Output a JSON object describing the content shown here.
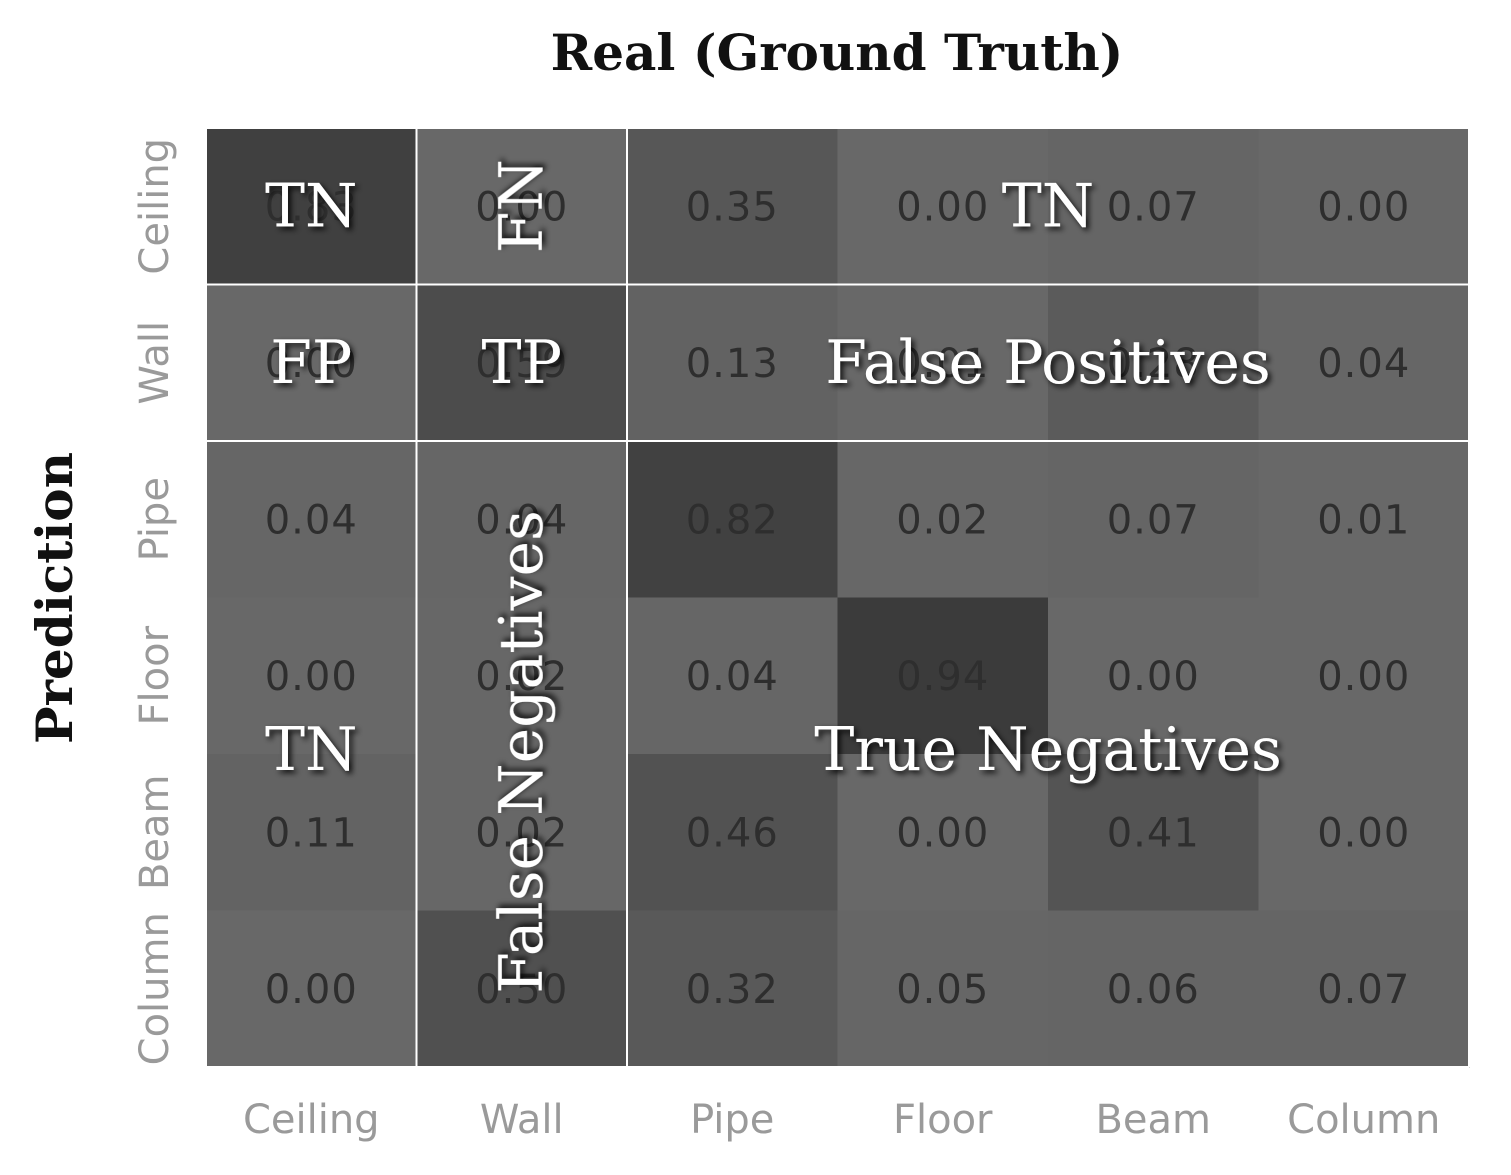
{
  "chart_data": {
    "type": "heatmap",
    "title": "Real (Ground Truth)",
    "xlabel": "Real (Ground Truth)",
    "ylabel": "Prediction",
    "x_categories": [
      "Ceiling",
      "Wall",
      "Pipe",
      "Floor",
      "Beam",
      "Column"
    ],
    "y_categories": [
      "Ceiling",
      "Wall",
      "Pipe",
      "Floor",
      "Beam",
      "Column"
    ],
    "values": [
      [
        0.83,
        0.0,
        0.35,
        0.0,
        0.07,
        0.0
      ],
      [
        0.0,
        0.59,
        0.13,
        0.01,
        0.28,
        0.04
      ],
      [
        0.04,
        0.04,
        0.82,
        0.02,
        0.07,
        0.01
      ],
      [
        0.0,
        0.02,
        0.04,
        0.94,
        0.0,
        0.0
      ],
      [
        0.11,
        0.02,
        0.46,
        0.0,
        0.41,
        0.0
      ],
      [
        0.0,
        0.5,
        0.32,
        0.05,
        0.06,
        0.07
      ]
    ],
    "annotations": [
      {
        "text": "TN",
        "region": "ceiling-ceiling"
      },
      {
        "text": "FN",
        "region": "ceiling-wall",
        "rotated": true
      },
      {
        "text": "TN",
        "region": "ceiling-row-right"
      },
      {
        "text": "FP",
        "region": "wall-ceiling"
      },
      {
        "text": "TP",
        "region": "wall-wall"
      },
      {
        "text": "False Positives",
        "region": "wall-row-right"
      },
      {
        "text": "TN",
        "region": "bottom-left"
      },
      {
        "text": "False Negatives",
        "region": "wall-column-lower",
        "rotated": true
      },
      {
        "text": "True Negatives",
        "region": "bottom-right"
      }
    ],
    "colormap": "grayscale",
    "grid_lines": "white partition lines at class Wall boundaries"
  }
}
